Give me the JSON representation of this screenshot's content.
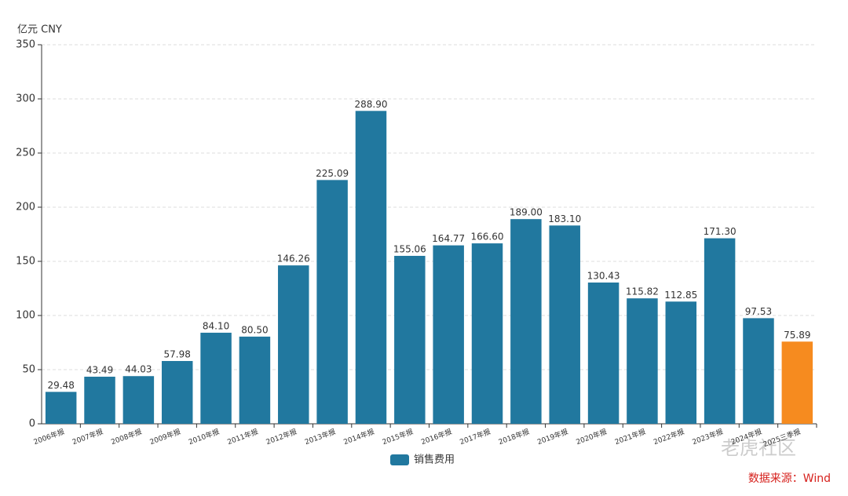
{
  "chart_data": {
    "type": "bar",
    "unit_label": "亿元  CNY",
    "categories": [
      "2006年报",
      "2007年报",
      "2008年报",
      "2009年报",
      "2010年报",
      "2011年报",
      "2012年报",
      "2013年报",
      "2014年报",
      "2015年报",
      "2016年报",
      "2017年报",
      "2018年报",
      "2019年报",
      "2020年报",
      "2021年报",
      "2022年报",
      "2023年报",
      "2024年报",
      "2025三季报"
    ],
    "series": [
      {
        "name": "销售费用",
        "color": "#21789f",
        "values": [
          29.48,
          43.49,
          44.03,
          57.98,
          84.1,
          80.5,
          146.26,
          225.09,
          288.9,
          155.06,
          164.77,
          166.6,
          189,
          183.1,
          130.43,
          115.82,
          112.85,
          171.3,
          97.53,
          75.89
        ],
        "value_labels": [
          "29.48",
          "43.49",
          "44.03",
          "57.98",
          "84.10",
          "80.50",
          "146.26",
          "225.09",
          "288.90",
          "155.06",
          "164.77",
          "166.60",
          "189.00",
          "183.10",
          "130.43",
          "115.82",
          "112.85",
          "171.30",
          "97.53",
          "75.89"
        ],
        "colors": [
          "#21789f",
          "#21789f",
          "#21789f",
          "#21789f",
          "#21789f",
          "#21789f",
          "#21789f",
          "#21789f",
          "#21789f",
          "#21789f",
          "#21789f",
          "#21789f",
          "#21789f",
          "#21789f",
          "#21789f",
          "#21789f",
          "#21789f",
          "#21789f",
          "#21789f",
          "#f68b1f"
        ]
      }
    ],
    "ylim": [
      0,
      350
    ],
    "yticks": [
      0,
      50,
      100,
      150,
      200,
      250,
      300,
      350
    ],
    "grid": true,
    "legend": "bottom",
    "source": "数据来源：Wind",
    "watermark": "老虎社区"
  }
}
